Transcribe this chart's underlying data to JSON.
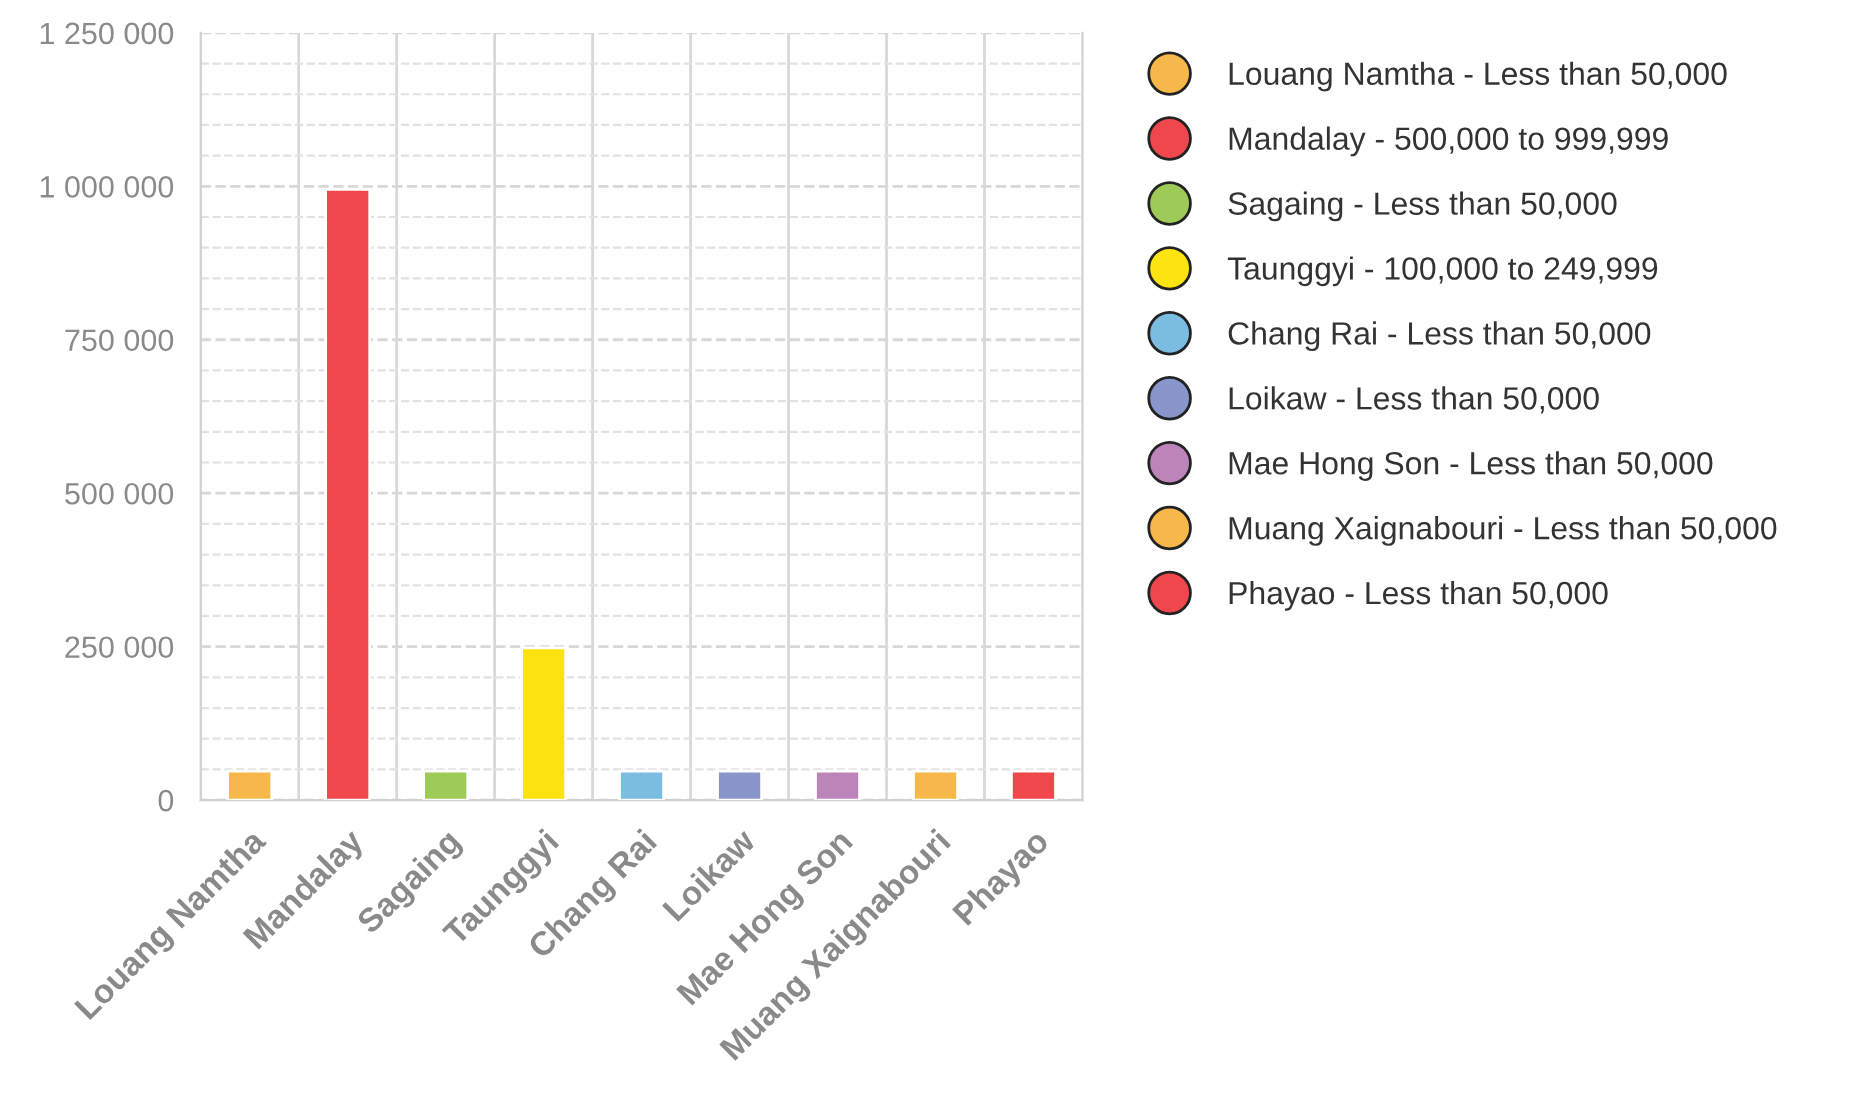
{
  "chart_data": {
    "type": "bar",
    "categories": [
      "Louang Namtha",
      "Mandalay",
      "Sagaing",
      "Taunggyi",
      "Chang Rai",
      "Loikaw",
      "Mae Hong Son",
      "Muang Xaignabouri",
      "Phayao"
    ],
    "series": [
      {
        "name": "Louang Namtha - Less than 50,000",
        "color": "#f7b84b",
        "values": [
          47000,
          null,
          null,
          null,
          null,
          null,
          null,
          null,
          null
        ]
      },
      {
        "name": "Mandalay - 500,000 to 999,999",
        "color": "#f0474c",
        "values": [
          null,
          995000,
          null,
          null,
          null,
          null,
          null,
          null,
          null
        ]
      },
      {
        "name": "Sagaing - Less than 50,000",
        "color": "#9ecb58",
        "values": [
          null,
          null,
          47000,
          null,
          null,
          null,
          null,
          null,
          null
        ]
      },
      {
        "name": "Taunggyi - 100,000 to 249,999",
        "color": "#fde30f",
        "values": [
          null,
          null,
          null,
          248000,
          null,
          null,
          null,
          null,
          null
        ]
      },
      {
        "name": "Chang Rai - Less than 50,000",
        "color": "#7abde1",
        "values": [
          null,
          null,
          null,
          null,
          47000,
          null,
          null,
          null,
          null
        ]
      },
      {
        "name": "Loikaw - Less than 50,000",
        "color": "#8996cb",
        "values": [
          null,
          null,
          null,
          null,
          null,
          47000,
          null,
          null,
          null
        ]
      },
      {
        "name": "Mae Hong Son - Less than 50,000",
        "color": "#bd84ba",
        "values": [
          null,
          null,
          null,
          null,
          null,
          null,
          47000,
          null,
          null
        ]
      },
      {
        "name": "Muang Xaignabouri - Less than 50,000",
        "color": "#f7b84b",
        "values": [
          null,
          null,
          null,
          null,
          null,
          null,
          null,
          47000,
          null
        ]
      },
      {
        "name": "Phayao - Less than 50,000",
        "color": "#f0474c",
        "values": [
          null,
          null,
          null,
          null,
          null,
          null,
          null,
          null,
          47000
        ]
      }
    ],
    "ylim": [
      0,
      1250000
    ],
    "yticks": [
      {
        "value": 0,
        "label": "0"
      },
      {
        "value": 250000,
        "label": "250 000"
      },
      {
        "value": 500000,
        "label": "500 000"
      },
      {
        "value": 750000,
        "label": "750 000"
      },
      {
        "value": 1000000,
        "label": "1 000 000"
      },
      {
        "value": 1250000,
        "label": "1 250 000"
      }
    ],
    "grid": true,
    "legend": "right"
  }
}
